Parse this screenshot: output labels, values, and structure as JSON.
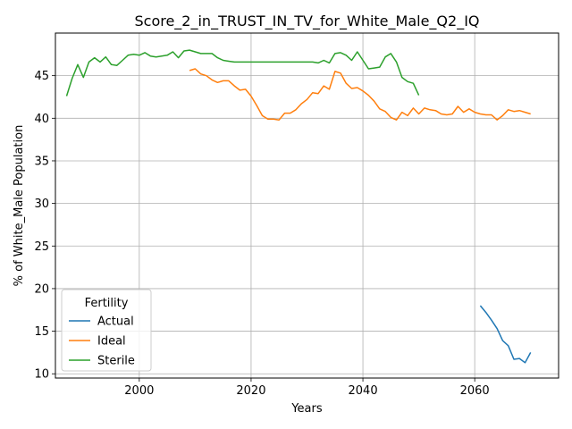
{
  "chart_data": {
    "type": "line",
    "title": "Score_2_in_TRUST_IN_TV_for_White_Male_Q2_IQ",
    "xlabel": "Years",
    "ylabel": "% of White_Male Population",
    "xlim": [
      1985,
      2075
    ],
    "ylim": [
      9.5,
      50
    ],
    "xticks": [
      2000,
      2020,
      2040,
      2060
    ],
    "yticks": [
      10,
      15,
      20,
      25,
      30,
      35,
      40,
      45
    ],
    "grid": true,
    "legend": {
      "title": "Fertility",
      "placement": "lower-left"
    },
    "series": [
      {
        "name": "Actual",
        "color": "#1f77b4",
        "x": [
          2061,
          2062,
          2063,
          2064,
          2065,
          2066,
          2067,
          2068,
          2069,
          2070
        ],
        "y": [
          18.0,
          17.2,
          16.3,
          15.3,
          13.9,
          13.3,
          11.7,
          11.8,
          11.3,
          12.5
        ]
      },
      {
        "name": "Ideal",
        "color": "#ff7f0e",
        "x": [
          2009,
          2010,
          2011,
          2012,
          2013,
          2014,
          2015,
          2016,
          2017,
          2018,
          2019,
          2020,
          2021,
          2022,
          2023,
          2024,
          2025,
          2026,
          2027,
          2028,
          2029,
          2030,
          2031,
          2032,
          2033,
          2034,
          2035,
          2036,
          2037,
          2038,
          2039,
          2040,
          2041,
          2042,
          2043,
          2044,
          2045,
          2046,
          2047,
          2048,
          2049,
          2050,
          2051,
          2052,
          2053,
          2054,
          2055,
          2056,
          2057,
          2058,
          2059,
          2060,
          2061,
          2062,
          2063,
          2064,
          2065,
          2066,
          2067,
          2068,
          2069,
          2070
        ],
        "y": [
          45.6,
          45.8,
          45.2,
          45.0,
          44.5,
          44.2,
          44.4,
          44.4,
          43.8,
          43.3,
          43.4,
          42.6,
          41.5,
          40.3,
          39.9,
          39.9,
          39.8,
          40.6,
          40.6,
          41.0,
          41.7,
          42.2,
          43.0,
          42.9,
          43.8,
          43.4,
          45.5,
          45.3,
          44.1,
          43.5,
          43.6,
          43.2,
          42.7,
          42.0,
          41.1,
          40.8,
          40.1,
          39.8,
          40.7,
          40.3,
          41.2,
          40.5,
          41.2,
          41.0,
          40.9,
          40.5,
          40.4,
          40.5,
          41.4,
          40.7,
          41.1,
          40.7,
          40.5,
          40.4,
          40.4,
          39.8,
          40.3,
          41.0,
          40.8,
          40.9,
          40.7,
          40.5
        ]
      },
      {
        "name": "Sterile",
        "color": "#2ca02c",
        "x": [
          1987,
          1988,
          1989,
          1990,
          1991,
          1992,
          1993,
          1994,
          1995,
          1996,
          1997,
          1998,
          1999,
          2000,
          2001,
          2002,
          2003,
          2004,
          2005,
          2006,
          2007,
          2008,
          2009,
          2010,
          2011,
          2012,
          2013,
          2014,
          2015,
          2016,
          2017,
          2018,
          2019,
          2020,
          2021,
          2022,
          2023,
          2024,
          2025,
          2026,
          2027,
          2028,
          2029,
          2030,
          2031,
          2032,
          2033,
          2034,
          2035,
          2036,
          2037,
          2038,
          2039,
          2040,
          2041,
          2042,
          2043,
          2044,
          2045,
          2046,
          2047,
          2048,
          2049,
          2050
        ],
        "y": [
          42.6,
          44.7,
          46.3,
          44.8,
          46.6,
          47.1,
          46.6,
          47.2,
          46.3,
          46.2,
          46.8,
          47.4,
          47.5,
          47.4,
          47.7,
          47.3,
          47.2,
          47.3,
          47.4,
          47.8,
          47.1,
          47.9,
          48.0,
          47.8,
          47.6,
          47.6,
          47.6,
          47.1,
          46.8,
          46.7,
          46.6,
          46.6,
          46.6,
          46.6,
          46.6,
          46.6,
          46.6,
          46.6,
          46.6,
          46.6,
          46.6,
          46.6,
          46.6,
          46.6,
          46.6,
          46.5,
          46.8,
          46.5,
          47.6,
          47.7,
          47.4,
          46.8,
          47.8,
          46.8,
          45.8,
          45.9,
          46.0,
          47.2,
          47.6,
          46.6,
          44.8,
          44.3,
          44.1,
          42.7
        ]
      }
    ]
  }
}
